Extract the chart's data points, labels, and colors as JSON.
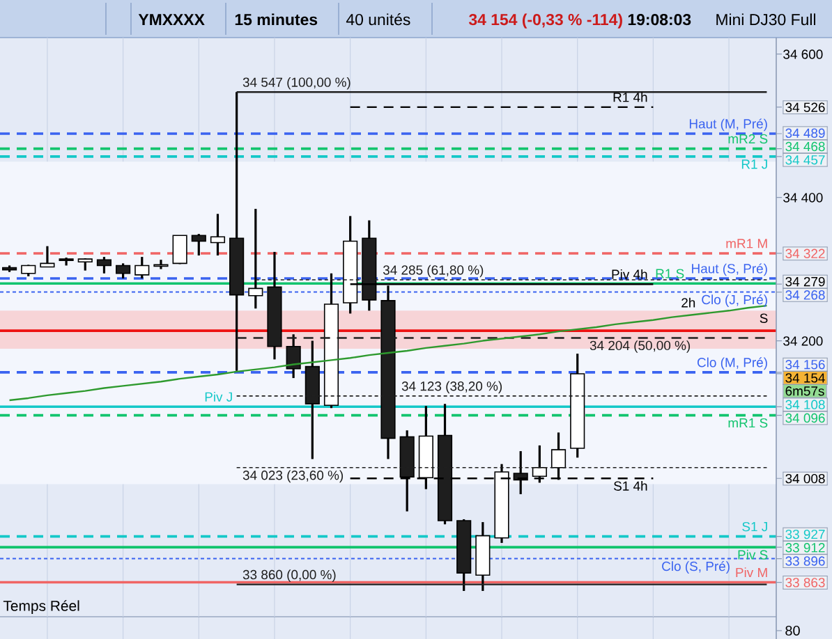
{
  "chart_data": {
    "type": "candlestick",
    "title": "YMXXXX",
    "categories": [
      null,
      null,
      null,
      null,
      null,
      null,
      null,
      null,
      null,
      null,
      null,
      null,
      null,
      null,
      null,
      null,
      null,
      null,
      null,
      null,
      null,
      null,
      null,
      null,
      null,
      null,
      null,
      null,
      null,
      null,
      null,
      null,
      null,
      null,
      null,
      null,
      null,
      null,
      null,
      null,
      null
    ],
    "ohlc": [
      [
        34302,
        34305,
        34296,
        34299
      ],
      [
        34294,
        34306,
        34290,
        34305
      ],
      [
        34303,
        34332,
        34303,
        34308
      ],
      [
        34314,
        34316,
        34305,
        34312
      ],
      [
        34310,
        34315,
        34298,
        34314
      ],
      [
        34313,
        34317,
        34294,
        34305
      ],
      [
        34305,
        34308,
        34287,
        34294
      ],
      [
        34292,
        34317,
        34287,
        34305
      ],
      [
        34304,
        34313,
        34300,
        34306
      ],
      [
        34308,
        34347,
        34307,
        34347
      ],
      [
        34347,
        34349,
        34319,
        34339
      ],
      [
        34337,
        34377,
        34319,
        34345
      ],
      [
        34343,
        34547,
        34158,
        34264
      ],
      [
        34263,
        34384,
        34245,
        34273
      ],
      [
        34275,
        34324,
        34174,
        34192
      ],
      [
        34192,
        34209,
        34148,
        34161
      ],
      [
        34164,
        34200,
        34035,
        34112
      ],
      [
        34110,
        34294,
        34106,
        34251
      ],
      [
        34253,
        34374,
        34238,
        34339
      ],
      [
        34343,
        34368,
        34242,
        34257
      ],
      [
        34256,
        34277,
        34035,
        34064
      ],
      [
        34066,
        34075,
        33962,
        34010
      ],
      [
        34009,
        34109,
        33993,
        34067
      ],
      [
        34068,
        34112,
        33944,
        33949
      ],
      [
        33949,
        33951,
        33851,
        33876
      ],
      [
        33873,
        33947,
        33851,
        33928
      ],
      [
        33925,
        34028,
        33918,
        34017
      ],
      [
        34015,
        34046,
        33986,
        34006
      ],
      [
        34011,
        34054,
        34002,
        34023
      ],
      [
        34023,
        34072,
        34006,
        34048
      ],
      [
        34050,
        34182,
        34037,
        34154
      ],
      null,
      null,
      null,
      null,
      null,
      null,
      null,
      null,
      null,
      null
    ],
    "series": [
      {
        "type": "line",
        "name": "34 547 (100,00 %)",
        "values": [
          null,
          null,
          null,
          null,
          null,
          null,
          null,
          null,
          null,
          null,
          null,
          null,
          34547,
          34547,
          34547,
          34547,
          34547,
          34547,
          34547,
          34547,
          34547,
          34547,
          34547,
          34547,
          34547,
          34547,
          34547,
          34547,
          34547,
          34547,
          34547,
          34547,
          34547,
          34547,
          34547,
          34547,
          34547,
          34547,
          34547,
          34547,
          34547
        ],
        "color": "#1f1f1f",
        "line_style": "solid"
      },
      {
        "type": "line",
        "name": "34 285 (61,80 %)",
        "values": [
          null,
          null,
          null,
          null,
          null,
          null,
          null,
          null,
          null,
          null,
          null,
          null,
          null,
          34285,
          34285,
          34285,
          34285,
          34285,
          34285,
          34285,
          34285,
          34285,
          34285,
          34285,
          34285,
          34285,
          34285,
          34285,
          34285,
          34285,
          34285,
          34285,
          34285,
          34285,
          34285,
          34285,
          34285,
          34285,
          34285,
          34285,
          34285
        ],
        "color": "#1f1f1f",
        "line_style": "dotted"
      },
      {
        "type": "line",
        "name": "34 204 (50,00 %)",
        "values": [
          null,
          null,
          null,
          null,
          null,
          null,
          null,
          null,
          null,
          null,
          null,
          null,
          34204,
          34204,
          34204,
          34204,
          34204,
          34204,
          34204,
          34204,
          34204,
          34204,
          34204,
          34204,
          34204,
          34204,
          34204,
          34204,
          34204,
          34204,
          34204,
          34204,
          34204,
          34204,
          34204,
          34204,
          34204,
          34204,
          34204,
          34204,
          34204
        ],
        "color": "#1f1f1f",
        "line_style": "dashed"
      },
      {
        "type": "line",
        "name": "34 123 (38,20 %)",
        "values": [
          null,
          null,
          null,
          null,
          null,
          null,
          null,
          null,
          null,
          null,
          null,
          null,
          34123,
          34123,
          34123,
          34123,
          34123,
          34123,
          34123,
          34123,
          34123,
          34123,
          34123,
          34123,
          34123,
          34123,
          34123,
          34123,
          34123,
          34123,
          34123,
          34123,
          34123,
          34123,
          34123,
          34123,
          34123,
          34123,
          34123,
          34123,
          34123
        ],
        "color": "#1f1f1f",
        "line_style": "dotted"
      },
      {
        "type": "line",
        "name": "34 023 (23,60 %)",
        "values": [
          null,
          null,
          null,
          null,
          null,
          null,
          null,
          null,
          null,
          null,
          null,
          null,
          34023,
          34023,
          34023,
          34023,
          34023,
          34023,
          34023,
          34023,
          34023,
          34023,
          34023,
          34023,
          34023,
          34023,
          34023,
          34023,
          34023,
          34023,
          34023,
          34023,
          34023,
          34023,
          34023,
          34023,
          34023,
          34023,
          34023,
          34023,
          34023
        ],
        "color": "#1f1f1f",
        "line_style": "dotted"
      },
      {
        "type": "line",
        "name": "33 860 (0,00 %)",
        "values": [
          null,
          null,
          null,
          null,
          null,
          null,
          null,
          null,
          null,
          null,
          null,
          null,
          33860,
          33860,
          33860,
          33860,
          33860,
          33860,
          33860,
          33860,
          33860,
          33860,
          33860,
          33860,
          33860,
          33860,
          33860,
          33860,
          33860,
          33860,
          33860,
          33860,
          33860,
          33860,
          33860,
          33860,
          33860,
          33860,
          33860,
          33860,
          33860
        ],
        "color": "#1f1f1f",
        "line_style": "solid"
      },
      {
        "type": "line",
        "name": "R1 4h",
        "values": [
          null,
          null,
          null,
          null,
          null,
          null,
          null,
          null,
          null,
          null,
          null,
          null,
          null,
          null,
          null,
          null,
          null,
          null,
          34526,
          34526,
          34526,
          34526,
          34526,
          34526,
          34526,
          34526,
          34526,
          34526,
          34526,
          34526,
          34526,
          34526,
          34526,
          34526,
          34526,
          null,
          null,
          null,
          null,
          null,
          null
        ],
        "color": "#000000",
        "line_style": "dashed"
      },
      {
        "type": "line",
        "name": "Piv 4h",
        "values": [
          null,
          null,
          null,
          null,
          null,
          null,
          null,
          null,
          null,
          null,
          null,
          null,
          null,
          null,
          null,
          null,
          null,
          null,
          34279,
          34279,
          34279,
          34279,
          34279,
          34279,
          34279,
          34279,
          34279,
          34279,
          34279,
          34279,
          34279,
          34279,
          34279,
          34279,
          34279,
          null,
          null,
          null,
          null,
          null,
          null
        ],
        "color": "#000000",
        "line_style": "solid"
      },
      {
        "type": "line",
        "name": "S1 4h",
        "values": [
          null,
          null,
          null,
          null,
          null,
          null,
          null,
          null,
          null,
          null,
          null,
          null,
          null,
          null,
          null,
          null,
          null,
          null,
          34008,
          34008,
          34008,
          34008,
          34008,
          34008,
          34008,
          34008,
          34008,
          34008,
          34008,
          34008,
          34008,
          34008,
          34008,
          34008,
          34008,
          null,
          null,
          null,
          null,
          null,
          null
        ],
        "color": "#000000",
        "line_style": "dashed"
      },
      {
        "type": "line",
        "values": [
          34117,
          34120,
          34124,
          34127,
          34130,
          34134,
          34137,
          34140,
          34143,
          34147,
          34150,
          34153,
          34157,
          34160,
          34163,
          34167,
          34170,
          34173,
          34176,
          34180,
          34183,
          34186,
          34190,
          34193,
          34196,
          34200,
          34203,
          34206,
          34209,
          34213,
          34216,
          34219,
          34223,
          34226,
          34229,
          34233,
          34236,
          34239,
          34242,
          34246,
          34249
        ],
        "color": "#2e9a2e"
      }
    ],
    "ref_lines": [
      {
        "axis": "y",
        "value": 34489,
        "label": "Haut (M, Pré)",
        "color": "#3a63f0",
        "line_style": "dashed"
      },
      {
        "axis": "y",
        "value": 34468,
        "label": "mR2 S",
        "color": "#12c46e",
        "line_style": "dashed"
      },
      {
        "axis": "y",
        "value": 34457,
        "label": "R1 J",
        "color": "#14c8c8",
        "line_style": "dashed"
      },
      {
        "axis": "y",
        "value": 34322,
        "label": "mR1 M",
        "color": "#f06565",
        "line_style": "dashed"
      },
      {
        "axis": "y",
        "value": 34287,
        "label": "Haut (S, Pré)",
        "color": "#3a63f0",
        "line_style": "dashed"
      },
      {
        "axis": "y",
        "value": 34280,
        "label": "R1 S",
        "color": "#12c46e",
        "line_style": "solid"
      },
      {
        "axis": "y",
        "value": 34268,
        "label": "Clo (J, Pré)",
        "color": "#3a63f0",
        "line_style": "dotted"
      },
      {
        "axis": "y",
        "value": 34214,
        "color": "#ee1111",
        "line_style": "solid"
      },
      {
        "axis": "y",
        "value": 34156,
        "label": "Clo (M, Pré)",
        "color": "#3a63f0",
        "line_style": "dashed"
      },
      {
        "axis": "y",
        "value": 34108,
        "label": "Piv J",
        "color": "#14c8c8",
        "line_style": "solid"
      },
      {
        "axis": "y",
        "value": 34096,
        "label": "mR1 S",
        "color": "#12c46e",
        "line_style": "dashed"
      },
      {
        "axis": "y",
        "value": 33927,
        "label": "S1 J",
        "color": "#14c8c8",
        "line_style": "dashed"
      },
      {
        "axis": "y",
        "value": 33912,
        "label": "Piv S",
        "color": "#12c46e",
        "line_style": "solid"
      },
      {
        "axis": "y",
        "value": 33896,
        "label": "Clo (S, Pré)",
        "color": "#3a63f0",
        "line_style": "dotted"
      },
      {
        "axis": "y",
        "value": 33863,
        "label": "Piv M",
        "color": "#f06565",
        "line_style": "solid"
      }
    ],
    "bands": [
      {
        "axis": "y",
        "from": 34000,
        "to": 34450,
        "color": "#f3f6fd"
      },
      {
        "axis": "y",
        "from": 34189,
        "to": 34242,
        "label": "S",
        "color": "#f7d4d7"
      }
    ],
    "annotations": [
      "15 minutes",
      "40 unités",
      "34 154 (-0,33 % -114)",
      "19:08:03",
      "Mini DJ30 Full",
      "Temps Réel",
      "6m57s",
      "80",
      "2h"
    ],
    "ylim": [
      33815,
      34623
    ],
    "yticks": [
      {
        "value": 34600,
        "label": "34 600"
      },
      {
        "value": 34526,
        "label": "34 526"
      },
      {
        "value": 34489,
        "label": "34 489"
      },
      {
        "value": 34468,
        "label": "34 468"
      },
      {
        "value": 34457,
        "label": "34 457"
      },
      {
        "value": 34400,
        "label": "34 400"
      },
      {
        "value": 34322,
        "label": "34 322"
      },
      {
        "value": 34279,
        "label": "34 279"
      },
      {
        "value": 34268,
        "label": "34 268"
      },
      {
        "value": 34200,
        "label": "34 200"
      },
      {
        "value": 34156,
        "label": "34 156"
      },
      {
        "value": 34154,
        "label": "34 154"
      },
      {
        "value": 34108,
        "label": "34 108"
      },
      {
        "value": 34096,
        "label": "34 096"
      },
      {
        "value": 34008,
        "label": "34 008"
      },
      {
        "value": 33927,
        "label": "33 927"
      },
      {
        "value": 33912,
        "label": "33 912"
      },
      {
        "value": 33896,
        "label": "33 896"
      },
      {
        "value": 33863,
        "label": "33 863"
      }
    ],
    "tick_labels": "y",
    "grid": "x"
  }
}
